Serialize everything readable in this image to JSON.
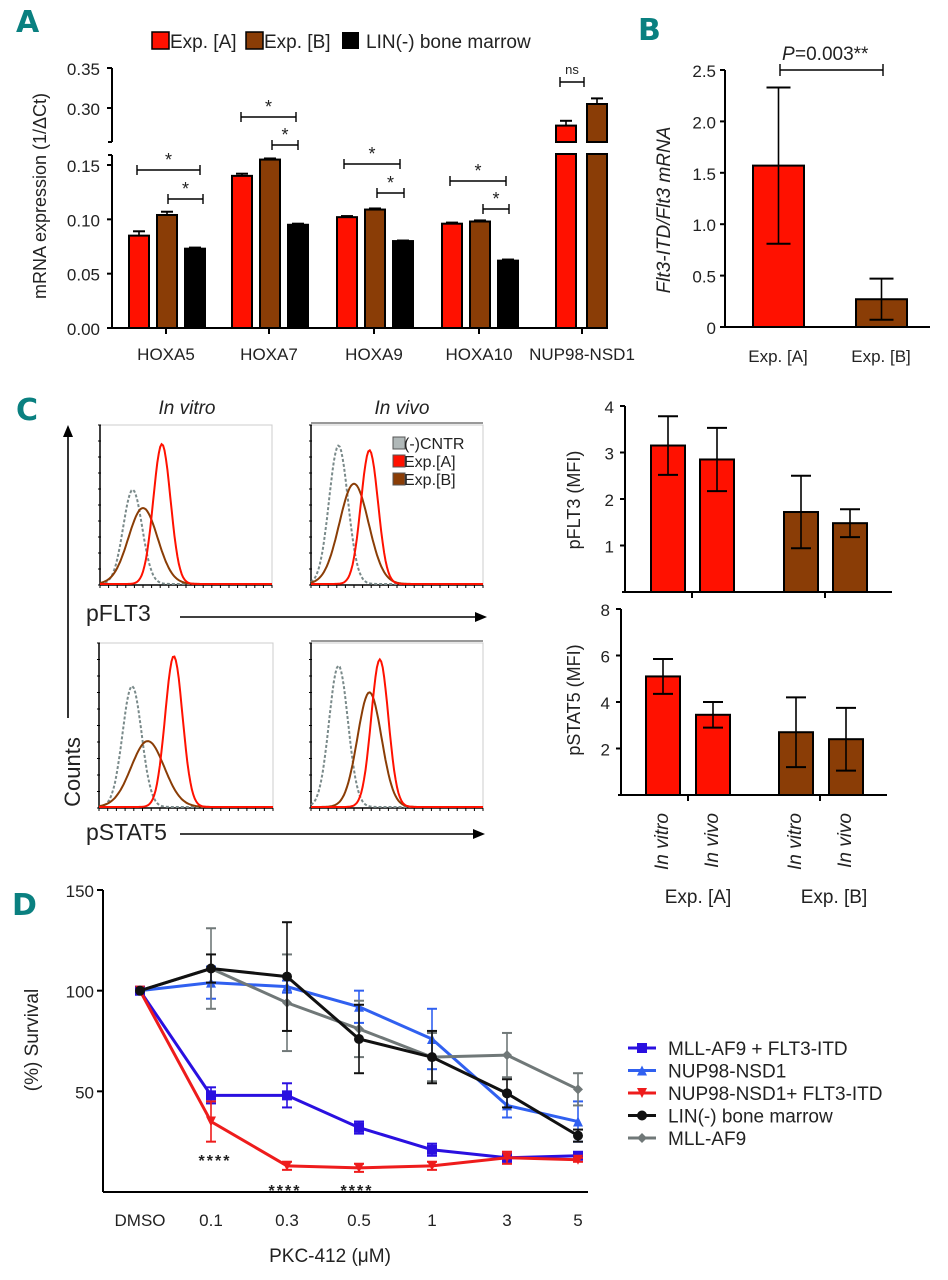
{
  "colors": {
    "expA": "#ff1100",
    "expB": "#8a3d06",
    "lin": "#000000",
    "cntr": "#b0b8b8",
    "panel_label": "#0a8080",
    "mll_af9_flt3": "#2a10e0",
    "nup98": "#3060f0",
    "nup98_flt3": "#ee1c1c",
    "lin_bm": "#111111",
    "mll_af9": "#707878"
  },
  "chart_data": [
    {
      "panel": "A",
      "type": "bar",
      "title": "",
      "legend": [
        "Exp. [A]",
        "Exp. [B]",
        "LIN(-) bone marrow"
      ],
      "legend_position": "top",
      "ylabel": "mRNA expression (1/ΔCt)",
      "xlabel": "",
      "yticks_lower": [
        "0.00",
        "0.05",
        "0.10",
        "0.15"
      ],
      "yticks_upper": [
        "0.30",
        "0.35"
      ],
      "ylim_lower": [
        0,
        0.15
      ],
      "ylim_upper": [
        0.25,
        0.35
      ],
      "axis_break": true,
      "categories": [
        "HOXA5",
        "HOXA7",
        "HOXA9",
        "HOXA10",
        "NUP98-NSD1"
      ],
      "series": [
        {
          "name": "Exp. [A]",
          "values": [
            0.085,
            0.14,
            0.102,
            0.096,
            0.278
          ],
          "errors": [
            0.004,
            0.002,
            0.001,
            0.001,
            0.006
          ]
        },
        {
          "name": "Exp. [B]",
          "values": [
            0.104,
            0.155,
            0.109,
            0.098,
            0.305
          ],
          "errors": [
            0.003,
            0.001,
            0.001,
            0.001,
            0.007
          ]
        },
        {
          "name": "LIN(-) bone marrow",
          "values": [
            0.073,
            0.095,
            0.08,
            0.062,
            null
          ],
          "errors": [
            0.001,
            0.001,
            0.0005,
            0.001,
            null
          ]
        }
      ],
      "significance": [
        {
          "category": "HOXA5",
          "pairs": [
            {
              "between": "A-LIN",
              "label": "*"
            },
            {
              "between": "B-LIN",
              "label": "*"
            }
          ]
        },
        {
          "category": "HOXA7",
          "pairs": [
            {
              "between": "A-LIN",
              "label": "*"
            },
            {
              "between": "B-LIN",
              "label": "*"
            }
          ]
        },
        {
          "category": "HOXA9",
          "pairs": [
            {
              "between": "A-LIN",
              "label": "*"
            },
            {
              "between": "B-LIN",
              "label": "*"
            }
          ]
        },
        {
          "category": "HOXA10",
          "pairs": [
            {
              "between": "A-LIN",
              "label": "*"
            },
            {
              "between": "B-LIN",
              "label": "*"
            }
          ]
        },
        {
          "category": "NUP98-NSD1",
          "pairs": [
            {
              "between": "A-B",
              "label": "ns"
            }
          ]
        }
      ]
    },
    {
      "panel": "B",
      "type": "bar",
      "title": "",
      "ylabel": "Flt3-ITD/Flt3 mRNA",
      "xlabel": "",
      "yticks": [
        "0",
        "0.5",
        "1.0",
        "1.5",
        "2.0",
        "2.5"
      ],
      "ylim": [
        0,
        2.5
      ],
      "categories": [
        "Exp. [A]",
        "Exp. [B]"
      ],
      "values": [
        1.57,
        0.27
      ],
      "errors": [
        0.76,
        0.2
      ],
      "significance": {
        "label_prefix": "P",
        "label": "=0.003**"
      }
    },
    {
      "panel": "C-histograms",
      "type": "line",
      "column_titles": [
        "In vitro",
        "In vivo"
      ],
      "row_labels": [
        "pFLT3",
        "pSTAT5"
      ],
      "yaxis_label": "Counts",
      "legend": [
        "(-)CNTR",
        "Exp.[A]",
        "Exp.[B]"
      ],
      "legend_position": "top-right",
      "peaks_relative_position": {
        "pFLT3_in_vitro": {
          "cntr": 0.19,
          "expA": 0.36,
          "expB": 0.25
        },
        "pFLT3_in_vivo": {
          "cntr": 0.16,
          "expA": 0.34,
          "expB": 0.25
        },
        "pSTAT5_in_vitro": {
          "cntr": 0.19,
          "expA": 0.43,
          "expB": 0.28
        },
        "pSTAT5_in_vivo": {
          "cntr": 0.16,
          "expA": 0.4,
          "expB": 0.34
        }
      }
    },
    {
      "panel": "C-pFLT3",
      "type": "bar",
      "ylabel": "pFLT3 (MFI)",
      "yticks": [
        "1",
        "2",
        "3",
        "4"
      ],
      "ylim": [
        0,
        4
      ],
      "categories": [
        "In vitro",
        "In vivo",
        "In vitro",
        "In vivo"
      ],
      "groups": [
        "Exp. [A]",
        "Exp. [A]",
        "Exp. [B]",
        "Exp. [B]"
      ],
      "values": [
        3.15,
        2.85,
        1.72,
        1.48
      ],
      "errors": [
        0.63,
        0.68,
        0.78,
        0.3
      ]
    },
    {
      "panel": "C-pSTAT5",
      "type": "bar",
      "ylabel": "pSTAT5 (MFI)",
      "yticks": [
        "2",
        "4",
        "6",
        "8"
      ],
      "ylim": [
        0,
        8
      ],
      "categories": [
        "In vitro",
        "In vivo",
        "In vitro",
        "In vivo"
      ],
      "groups": [
        "Exp. [A]",
        "Exp. [A]",
        "Exp. [B]",
        "Exp. [B]"
      ],
      "values": [
        5.1,
        3.45,
        2.7,
        2.4
      ],
      "errors": [
        0.75,
        0.55,
        1.5,
        1.35
      ],
      "group_labels": [
        "Exp. [A]",
        "Exp. [B]"
      ]
    },
    {
      "panel": "D",
      "type": "line",
      "ylabel": "(%) Survival",
      "xlabel": "PKC-412 (μM)",
      "x": [
        "DMSO",
        "0.1",
        "0.3",
        "0.5",
        "1",
        "3",
        "5"
      ],
      "yticks": [
        "50",
        "100",
        "150"
      ],
      "ylim": [
        0,
        150
      ],
      "legend_position": "right",
      "series": [
        {
          "name": "MLL-AF9 + FLT3-ITD",
          "marker": "square",
          "values": [
            100,
            48,
            48,
            32,
            21,
            17,
            18
          ],
          "errors": [
            0,
            4,
            6,
            3,
            3,
            2,
            1
          ]
        },
        {
          "name": "NUP98-NSD1",
          "marker": "triangle-up",
          "values": [
            100,
            104,
            102,
            92,
            76,
            43,
            35
          ],
          "errors": [
            0,
            8,
            3,
            8,
            15,
            6,
            10
          ]
        },
        {
          "name": "NUP98-NSD1+ FLT3-ITD",
          "marker": "triangle-down",
          "values": [
            100,
            35,
            13,
            12,
            13,
            17,
            16
          ],
          "errors": [
            0,
            10,
            2,
            2,
            2,
            3,
            1
          ]
        },
        {
          "name": "LIN(-) bone marrow",
          "marker": "circle",
          "values": [
            100,
            111,
            107,
            76,
            67,
            49,
            28
          ],
          "errors": [
            0,
            7,
            27,
            17,
            13,
            7,
            3
          ]
        },
        {
          "name": "MLL-AF9",
          "marker": "diamond",
          "values": [
            100,
            111,
            94,
            81,
            67,
            68,
            51
          ],
          "errors": [
            0,
            20,
            24,
            14,
            12,
            11,
            8
          ]
        }
      ],
      "annotations": [
        {
          "x": "0.1",
          "text": "****"
        },
        {
          "x": "0.3",
          "text": "****"
        },
        {
          "x": "0.5",
          "text": "****"
        }
      ]
    }
  ],
  "labels": {
    "panel_a": "A",
    "panel_b": "B",
    "panel_c": "C",
    "panel_d": "D",
    "ns": "ns",
    "star": "*"
  }
}
